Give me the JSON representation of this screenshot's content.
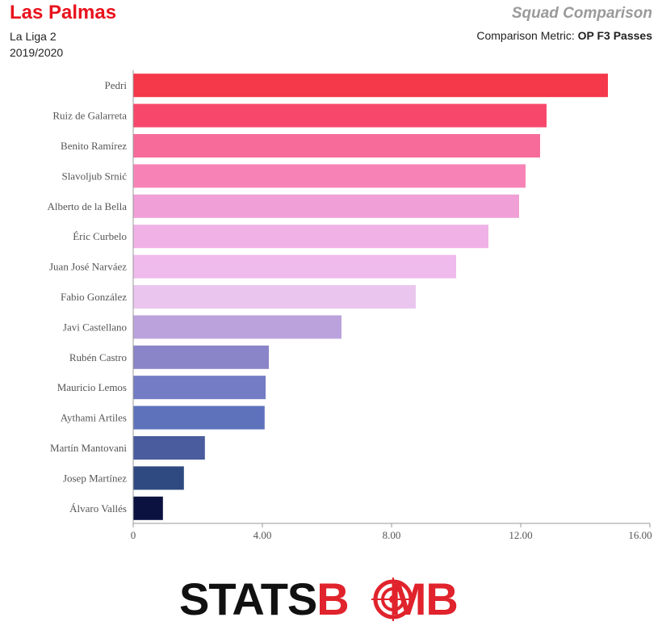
{
  "header": {
    "team": "Las Palmas",
    "league": "La Liga 2",
    "season": "2019/2020",
    "section_title": "Squad Comparison",
    "metric_prefix": "Comparison Metric: ",
    "metric_value": "OP F3 Passes"
  },
  "logo": {
    "part1": "STATS",
    "part2a": "B",
    "part2b": "MB",
    "color_dark": "#111111",
    "color_red": "#e0232c"
  },
  "chart_data": {
    "type": "bar",
    "orientation": "horizontal",
    "categories": [
      "Pedri",
      "Ruiz de Galarreta",
      "Benito Ramírez",
      "Slavoljub Srnić",
      "Alberto de la Bella",
      "Éric Curbelo",
      "Juan José Narváez",
      "Fabio González",
      "Javi Castellano",
      "Rubén Castro",
      "Mauricio Lemos",
      "Aythami Artiles",
      "Martín Mantovani",
      "Josep Martínez",
      "Álvaro Vallés"
    ],
    "values": [
      14.7,
      12.8,
      12.6,
      12.15,
      11.95,
      11.0,
      10.0,
      8.75,
      6.45,
      4.2,
      4.1,
      4.07,
      2.22,
      1.57,
      0.92
    ],
    "colors": [
      "#f5384a",
      "#f7486c",
      "#f76b9a",
      "#f783b6",
      "#f0a0d6",
      "#f0b2e6",
      "#efbaec",
      "#eac6ee",
      "#bba2dc",
      "#8a84c8",
      "#737cc4",
      "#5e72bc",
      "#4a5c9e",
      "#2e4a80",
      "#0c1240"
    ],
    "xlim": [
      0,
      16
    ],
    "xticks": [
      0,
      4,
      8,
      12,
      16
    ],
    "xtick_labels": [
      "0",
      "4.00",
      "8.00",
      "12.00",
      "16.00"
    ],
    "title": "",
    "xlabel": "",
    "ylabel": "",
    "grid": false
  }
}
